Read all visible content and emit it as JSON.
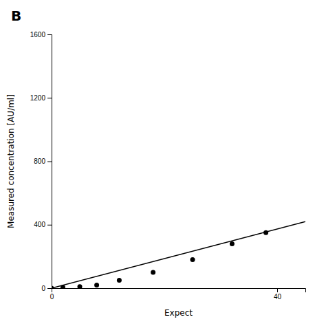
{
  "chart_data": {
    "type": "scatter",
    "title": "B",
    "x_label": "Expect",
    "y_label": "Measured concentration [AU/ml]",
    "series": [
      {
        "type": "scatter",
        "color": "#000000",
        "x": [
          0,
          2,
          5,
          8,
          12,
          18,
          25,
          32,
          38
        ],
        "values": [
          0,
          5,
          10,
          20,
          50,
          100,
          180,
          280,
          350
        ]
      },
      {
        "type": "line",
        "color": "#000000",
        "x": [
          0,
          45
        ],
        "values": [
          0,
          420
        ]
      }
    ],
    "xlim": [
      0,
      45
    ],
    "xticks": [
      0,
      40
    ],
    "ylim": [
      0,
      1600
    ],
    "yticks": [
      0,
      400,
      800,
      1200,
      1600
    ],
    "grid": false
  }
}
